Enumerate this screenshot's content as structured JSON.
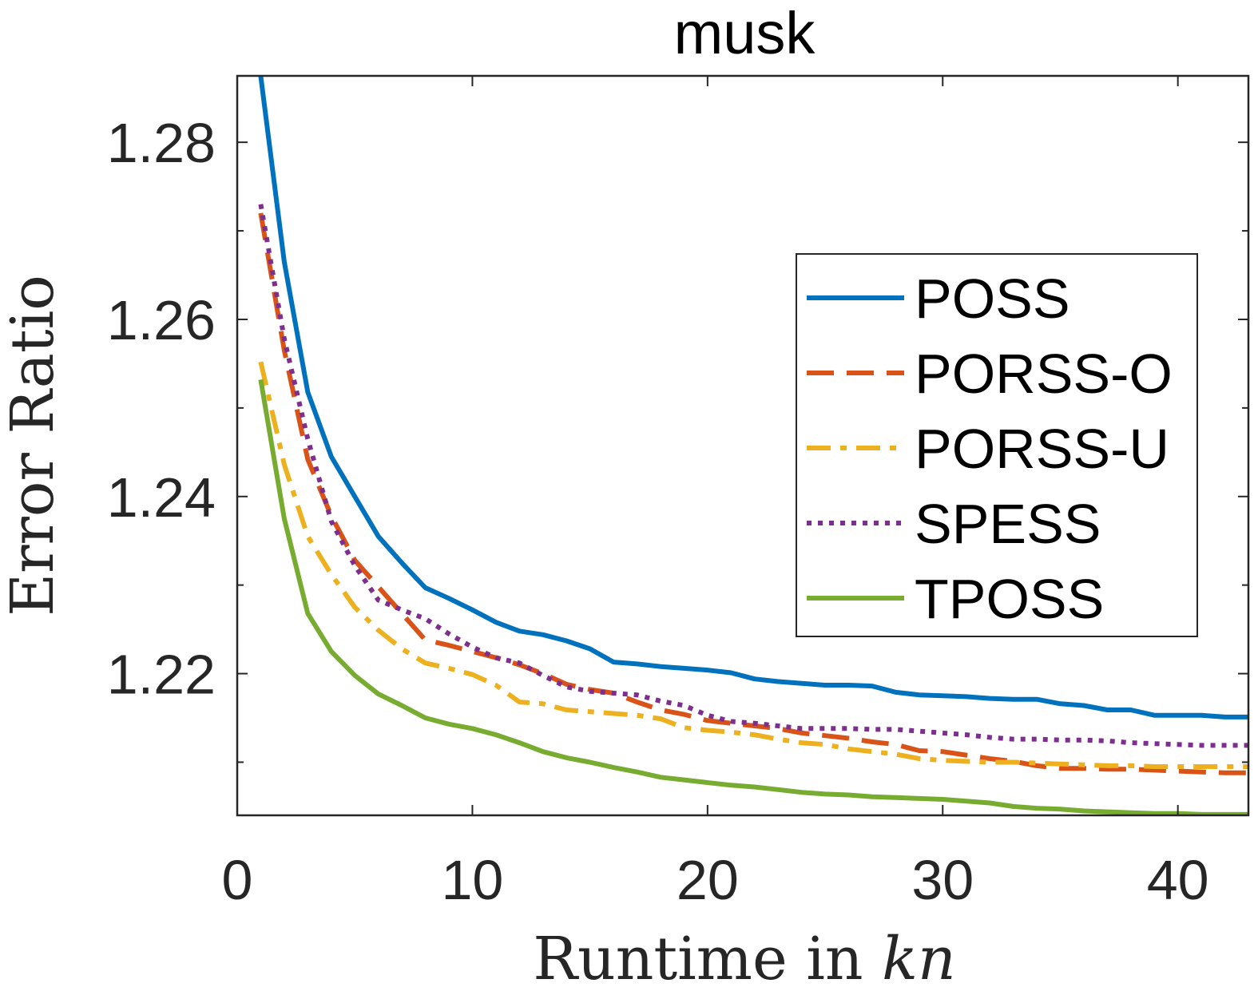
{
  "chart_data": {
    "type": "line",
    "title": "musk",
    "xlabel": "Runtime in kn",
    "xlabel_main": "Runtime in",
    "xlabel_var": "kn",
    "ylabel": "Error Ratio",
    "xlim": [
      0,
      43
    ],
    "ylim": [
      1.204,
      1.2875
    ],
    "xticks": [
      0,
      10,
      20,
      30,
      40
    ],
    "yticks": [
      1.22,
      1.24,
      1.26,
      1.28
    ],
    "grid": false,
    "legend_position": "right",
    "x": [
      1,
      2,
      3,
      4,
      5,
      6,
      7,
      8,
      9,
      10,
      11,
      12,
      13,
      14,
      15,
      16,
      17,
      18,
      19,
      20,
      21,
      22,
      23,
      24,
      25,
      26,
      27,
      28,
      29,
      30,
      31,
      32,
      33,
      34,
      35,
      36,
      37,
      38,
      39,
      40,
      41,
      42,
      43
    ],
    "series": [
      {
        "name": "POSS",
        "color": "#0072BD",
        "dash": "solid",
        "values": [
          1.2875,
          1.2665,
          1.2518,
          1.2445,
          1.24,
          1.2355,
          1.2325,
          1.2297,
          1.2285,
          1.2272,
          1.2258,
          1.2248,
          1.2244,
          1.2237,
          1.2228,
          1.2213,
          1.2211,
          1.2208,
          1.2206,
          1.2204,
          1.2201,
          1.2194,
          1.2191,
          1.2189,
          1.2187,
          1.2187,
          1.2186,
          1.2179,
          1.2176,
          1.2175,
          1.2174,
          1.2172,
          1.2171,
          1.2171,
          1.2166,
          1.2164,
          1.2159,
          1.2159,
          1.2153,
          1.2153,
          1.2153,
          1.2151,
          1.2151
        ]
      },
      {
        "name": "PORSS-O",
        "color": "#D95319",
        "dash": "dashed",
        "values": [
          1.272,
          1.2565,
          1.2442,
          1.2378,
          1.2328,
          1.2298,
          1.2268,
          1.2238,
          1.2232,
          1.2225,
          1.2218,
          1.221,
          1.22,
          1.2188,
          1.2182,
          1.2178,
          1.2168,
          1.2159,
          1.2154,
          1.2147,
          1.2144,
          1.2141,
          1.2138,
          1.2133,
          1.213,
          1.2127,
          1.2123,
          1.212,
          1.2113,
          1.2112,
          1.2108,
          1.2104,
          1.2101,
          1.2096,
          1.2093,
          1.2093,
          1.2092,
          1.2092,
          1.2091,
          1.209,
          1.2089,
          1.2088,
          1.2088
        ]
      },
      {
        "name": "PORSS-U",
        "color": "#EDB120",
        "dash": "dashdot",
        "values": [
          1.2552,
          1.2436,
          1.2355,
          1.2312,
          1.2275,
          1.2249,
          1.2228,
          1.2212,
          1.2206,
          1.2199,
          1.2187,
          1.2168,
          1.2166,
          1.2159,
          1.2157,
          1.2155,
          1.2153,
          1.2149,
          1.2139,
          1.2136,
          1.2134,
          1.2131,
          1.2126,
          1.2122,
          1.212,
          1.2115,
          1.2112,
          1.2109,
          1.2104,
          1.2102,
          1.2101,
          1.21,
          1.21,
          1.2099,
          1.2098,
          1.2097,
          1.2096,
          1.2096,
          1.2095,
          1.2095,
          1.2095,
          1.2095,
          1.2095
        ]
      },
      {
        "name": "SPESS",
        "color": "#7E2F8E",
        "dash": "dotted",
        "values": [
          1.273,
          1.2578,
          1.2465,
          1.2372,
          1.2322,
          1.2283,
          1.2272,
          1.2262,
          1.2245,
          1.223,
          1.2218,
          1.2212,
          1.2198,
          1.2185,
          1.218,
          1.2178,
          1.2176,
          1.2169,
          1.2164,
          1.2153,
          1.2146,
          1.2144,
          1.2141,
          1.2138,
          1.2138,
          1.2138,
          1.2137,
          1.2137,
          1.2135,
          1.2133,
          1.2131,
          1.2128,
          1.2126,
          1.2126,
          1.2125,
          1.2125,
          1.2124,
          1.2122,
          1.2121,
          1.212,
          1.2119,
          1.2119,
          1.2119
        ]
      },
      {
        "name": "TPOSS",
        "color": "#77AC30",
        "dash": "solid",
        "values": [
          1.2532,
          1.2375,
          1.2268,
          1.2225,
          1.2198,
          1.2177,
          1.2164,
          1.215,
          1.2143,
          1.2138,
          1.2131,
          1.2122,
          1.2112,
          1.2105,
          1.21,
          1.2094,
          1.2089,
          1.2083,
          1.208,
          1.2077,
          1.2074,
          1.2072,
          1.2069,
          1.2066,
          1.2064,
          1.2063,
          1.2061,
          1.206,
          1.2059,
          1.2058,
          1.2056,
          1.2054,
          1.205,
          1.2048,
          1.2047,
          1.2045,
          1.2044,
          1.2043,
          1.2042,
          1.2042,
          1.2041,
          1.2041,
          1.2041
        ]
      }
    ]
  }
}
